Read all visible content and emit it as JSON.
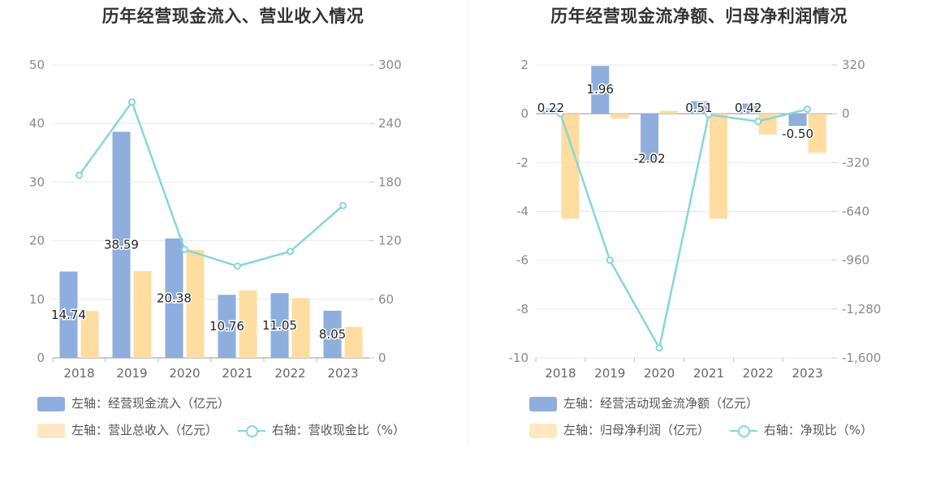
{
  "chart_data": [
    {
      "type": "bar",
      "title": "历年经营现金流入、营业收入情况",
      "categories": [
        "2018",
        "2019",
        "2020",
        "2021",
        "2022",
        "2023"
      ],
      "left_axis": {
        "min": 0,
        "max": 50,
        "ticks": [
          "0",
          "10",
          "20",
          "30",
          "40",
          "50"
        ],
        "tick_values": [
          0,
          10,
          20,
          30,
          40,
          50
        ]
      },
      "right_axis": {
        "min": 0,
        "max": 300,
        "ticks": [
          "0",
          "60",
          "120",
          "180",
          "240",
          "300"
        ],
        "tick_values": [
          0,
          60,
          120,
          180,
          240,
          300
        ]
      },
      "series": [
        {
          "name": "经营现金流入",
          "legend": "左轴：经营现金流入（亿元）",
          "kind": "bar",
          "axis": "left",
          "color": "#8eaedd",
          "values": [
            14.74,
            38.59,
            20.38,
            10.76,
            11.05,
            8.05
          ],
          "labels": [
            "14.74",
            "38.59",
            "20.38",
            "10.76",
            "11.05",
            "8.05"
          ]
        },
        {
          "name": "营业总收入",
          "legend": "左轴：营业总收入（亿元）",
          "kind": "bar",
          "axis": "left",
          "color": "#ffdc9f",
          "values": [
            8.0,
            14.8,
            18.4,
            11.5,
            10.2,
            5.3
          ]
        },
        {
          "name": "营收现金比",
          "legend": "右轴：营收现金比（%）",
          "kind": "line",
          "axis": "right",
          "color": "#88d6d8",
          "values": [
            187,
            262,
            111,
            94,
            109,
            156
          ]
        }
      ]
    },
    {
      "type": "bar",
      "title": "历年经营现金流净额、归母净利润情况",
      "categories": [
        "2018",
        "2019",
        "2020",
        "2021",
        "2022",
        "2023"
      ],
      "left_axis": {
        "min": -10,
        "max": 2,
        "ticks": [
          "-10",
          "-8",
          "-6",
          "-4",
          "-2",
          "0",
          "2"
        ],
        "tick_values": [
          -10,
          -8,
          -6,
          -4,
          -2,
          0,
          2
        ]
      },
      "right_axis": {
        "min": -1600,
        "max": 320,
        "ticks": [
          "-1,600",
          "-1,280",
          "-960",
          "-640",
          "-320",
          "0",
          "320"
        ],
        "tick_values": [
          -1600,
          -1280,
          -960,
          -640,
          -320,
          0,
          320
        ]
      },
      "series": [
        {
          "name": "经营活动现金流净额",
          "legend": "左轴：经营活动现金流净额（亿元）",
          "kind": "bar",
          "axis": "left",
          "color": "#8eaedd",
          "values": [
            0.22,
            1.96,
            -2.02,
            0.51,
            0.42,
            -0.5
          ],
          "labels": [
            "0.22",
            "1.96",
            "-2.02",
            "0.51",
            "0.42",
            "-0.50"
          ]
        },
        {
          "name": "归母净利润",
          "legend": "左轴：归母净利润（亿元）",
          "kind": "bar",
          "axis": "left",
          "color": "#ffdc9f",
          "values": [
            -4.3,
            -0.2,
            0.12,
            -4.3,
            -0.85,
            -1.6
          ]
        },
        {
          "name": "净现比",
          "legend": "右轴：净现比（%）",
          "kind": "line",
          "axis": "right",
          "color": "#88d6d8",
          "values": [
            -1,
            -960,
            -1535,
            -5,
            -50,
            30
          ]
        }
      ]
    }
  ]
}
